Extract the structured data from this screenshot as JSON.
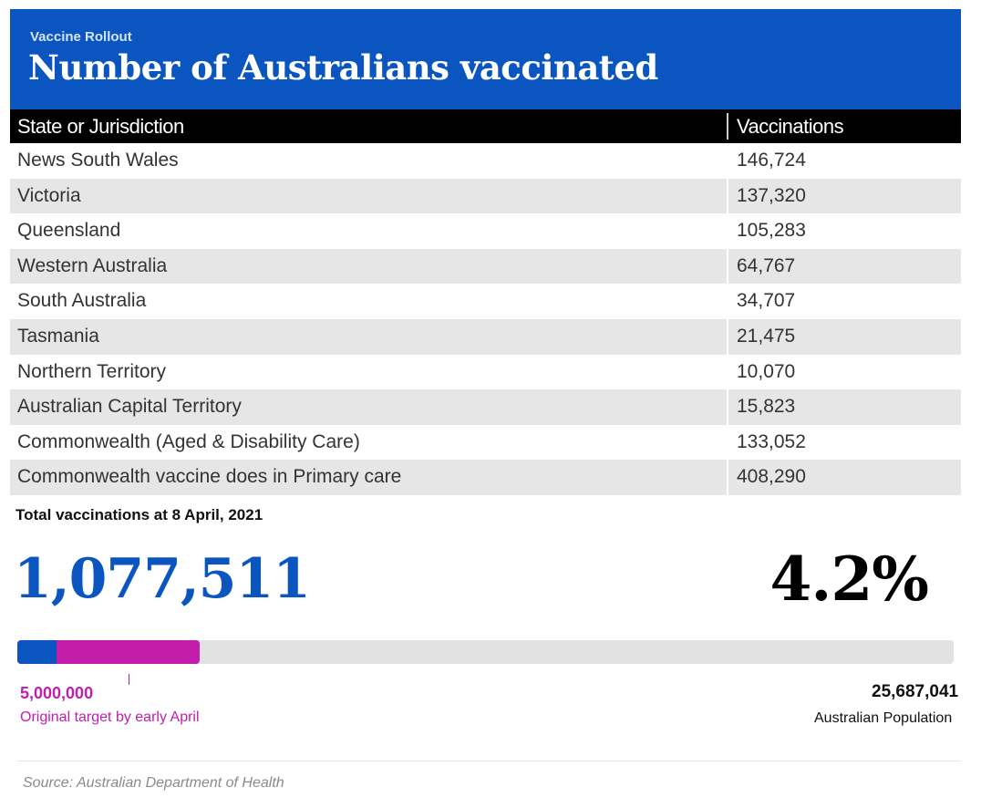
{
  "header": {
    "kicker": "Vaccine Rollout",
    "title": "Number of Australians vaccinated",
    "bg_color": "#0b55c1"
  },
  "chart_data": {
    "type": "table",
    "columns": [
      "State or Jurisdiction",
      "Vaccinations"
    ],
    "rows": [
      {
        "state": "News South Wales",
        "vaccinations": "146,724"
      },
      {
        "state": "Victoria",
        "vaccinations": "137,320"
      },
      {
        "state": "Queensland",
        "vaccinations": "105,283"
      },
      {
        "state": "Western Australia",
        "vaccinations": "64,767"
      },
      {
        "state": "South Australia",
        "vaccinations": "34,707"
      },
      {
        "state": "Tasmania",
        "vaccinations": "21,475"
      },
      {
        "state": "Northern Territory",
        "vaccinations": "10,070"
      },
      {
        "state": "Australian Capital Territory",
        "vaccinations": "15,823"
      },
      {
        "state": "Commonwealth (Aged & Disability Care)",
        "vaccinations": "133,052"
      },
      {
        "state": "Commonwealth vaccine does in Primary care",
        "vaccinations": "408,290"
      }
    ]
  },
  "summary": {
    "total_label": "Total vaccinations at 8 April, 2021",
    "total_value": "1,077,511",
    "percent": "4.2%"
  },
  "progress": {
    "actual_value": 1077511,
    "target_value_num": 5000000,
    "population_value_num": 25687041,
    "actual_color": "#0b55c1",
    "target_color": "#c21dab",
    "track_color": "#e2e2e2",
    "target_value": "5,000,000",
    "target_label": "Original target by early April",
    "population_value": "25,687,041",
    "population_label": "Australian Population"
  },
  "source": "Source: Australian Department of Health"
}
